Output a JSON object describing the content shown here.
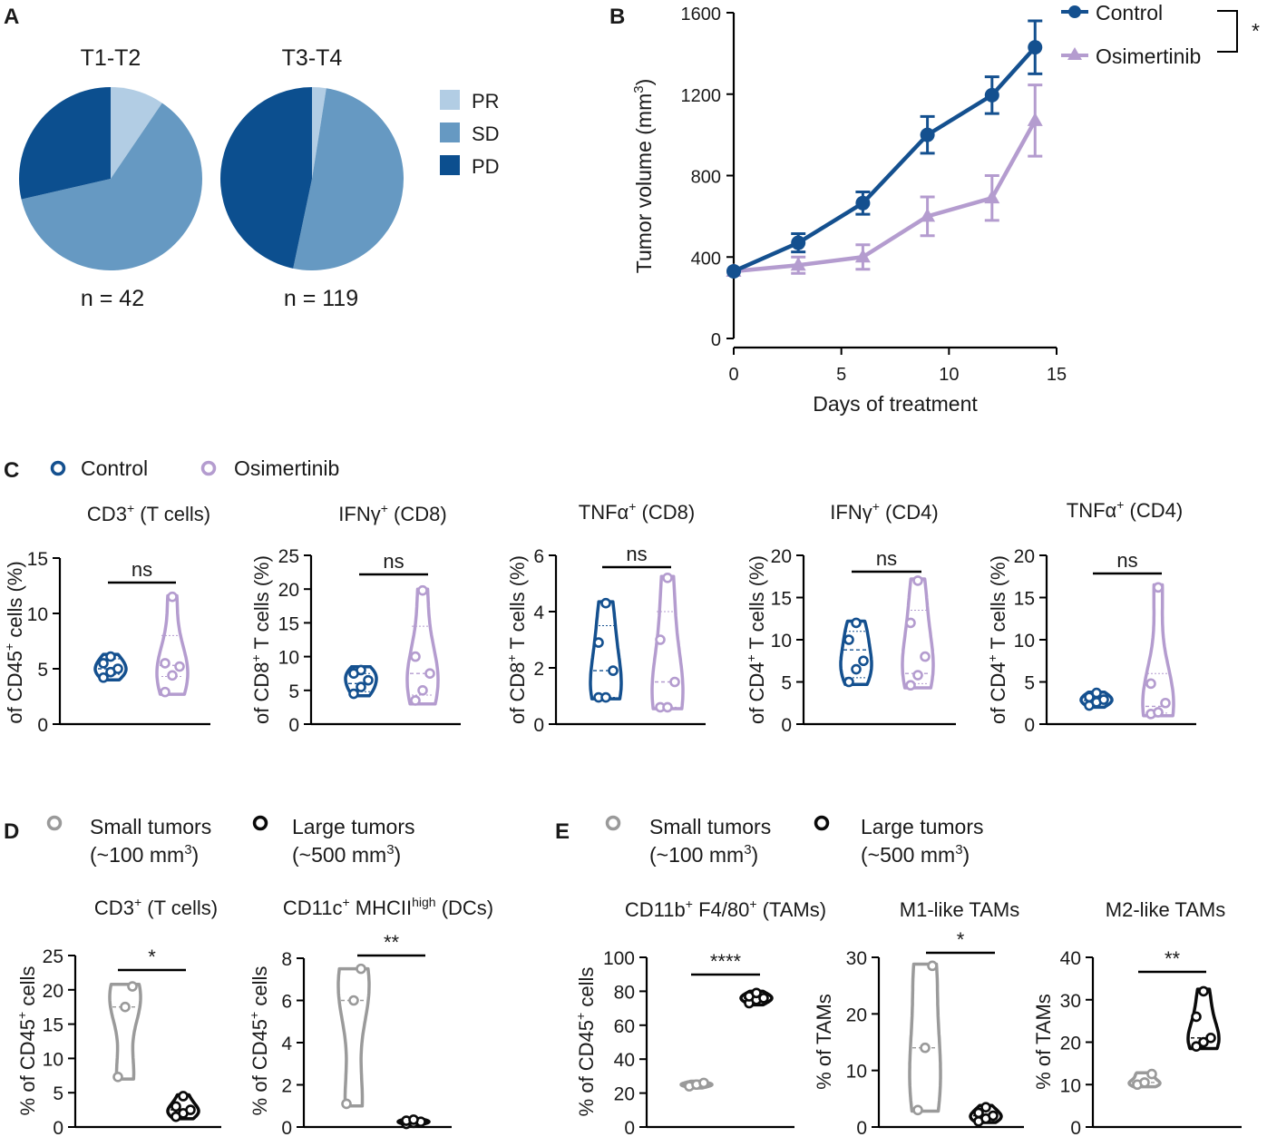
{
  "colors": {
    "control": "#14508f",
    "osimertinib": "#b49ccf",
    "small": "#9a9a9a",
    "large": "#0a0a0a",
    "pie_pr": "#b2cde4",
    "pie_sd": "#6699c2",
    "pie_pd": "#0c4f8f"
  },
  "panels": {
    "A": "A",
    "B": "B",
    "C": "C",
    "D": "D",
    "E": "E"
  },
  "chart_data": [
    {
      "id": "A1",
      "type": "pie",
      "title": "T1-T2",
      "n_label": "n = 42",
      "slices": [
        {
          "name": "PR",
          "value": 9.5
        },
        {
          "name": "SD",
          "value": 61.9
        },
        {
          "name": "PD",
          "value": 28.6
        }
      ]
    },
    {
      "id": "A2",
      "type": "pie",
      "title": "T3-T4",
      "n_label": "n = 119",
      "slices": [
        {
          "name": "PR",
          "value": 2.5
        },
        {
          "name": "SD",
          "value": 50.8
        },
        {
          "name": "PD",
          "value": 46.7
        }
      ]
    },
    {
      "id": "A_legend",
      "type": "legend",
      "entries": [
        "PR",
        "SD",
        "PD"
      ]
    },
    {
      "id": "B",
      "type": "line",
      "xlabel": "Days of treatment",
      "ylabel": "Tumor volume (mm",
      "ylabel_sup": "3",
      "ylabel_end": ")",
      "xlim": [
        0,
        15
      ],
      "ylim": [
        0,
        1600
      ],
      "xticks": [
        0,
        5,
        10,
        15
      ],
      "yticks": [
        0,
        400,
        800,
        1200,
        1600
      ],
      "significance": "*",
      "series": [
        {
          "name": "Control",
          "marker": "circle",
          "x": [
            0,
            3,
            6,
            9,
            12,
            14
          ],
          "y": [
            330,
            470,
            665,
            1000,
            1195,
            1430
          ],
          "err": [
            20,
            45,
            55,
            90,
            90,
            130
          ]
        },
        {
          "name": "Osimertinib",
          "marker": "triangle",
          "x": [
            0,
            3,
            6,
            9,
            12,
            14
          ],
          "y": [
            330,
            360,
            400,
            600,
            690,
            1070
          ],
          "err": [
            20,
            40,
            60,
            95,
            110,
            175
          ]
        }
      ]
    },
    {
      "id": "C_legend",
      "type": "legend",
      "entries": [
        "Control",
        "Osimertinib"
      ]
    },
    {
      "id": "C1",
      "type": "violin",
      "title_main": "CD3",
      "title_sup": "+",
      "title_rest": " (T cells)",
      "ylabel": "of CD45",
      "ylabel_sup": "+",
      "ylabel_end": " cells (%)",
      "ylim": [
        0,
        15
      ],
      "yticks": [
        0,
        5,
        10,
        15
      ],
      "sig": "ns",
      "groups": [
        {
          "name": "Control",
          "values": [
            4.2,
            4.7,
            5.0,
            5.5,
            6.1
          ],
          "min": 4.0,
          "max": 6.3,
          "median": 5.0,
          "q1": 4.5,
          "q3": 5.9
        },
        {
          "name": "Osimertinib",
          "values": [
            2.9,
            4.4,
            5.2,
            5.5,
            11.5
          ],
          "min": 2.7,
          "max": 11.6,
          "median": 5.3,
          "q1": 4.3,
          "q3": 8.0
        }
      ]
    },
    {
      "id": "C2",
      "type": "violin",
      "title_main": "IFNγ",
      "title_sup": "+",
      "title_rest": " (CD8)",
      "ylabel": "of CD8",
      "ylabel_sup": "+",
      "ylabel_end": " T cells (%)",
      "ylim": [
        0,
        25
      ],
      "yticks": [
        0,
        5,
        10,
        15,
        20,
        25
      ],
      "sig": "ns",
      "groups": [
        {
          "name": "Control",
          "values": [
            4.5,
            5.5,
            6.5,
            7.5,
            8.0
          ],
          "min": 4.2,
          "max": 8.5,
          "median": 6.0,
          "q1": 4.8,
          "q3": 7.5
        },
        {
          "name": "Osimertinib",
          "values": [
            3.5,
            5.0,
            7.5,
            10.0,
            19.8
          ],
          "min": 3.0,
          "max": 20.0,
          "median": 7.5,
          "q1": 4.3,
          "q3": 14.5
        }
      ]
    },
    {
      "id": "C3",
      "type": "violin",
      "title_main": "TNFα",
      "title_sup": "+",
      "title_rest": " (CD8)",
      "ylabel": "of CD8",
      "ylabel_sup": "+",
      "ylabel_end": " T cells (%)",
      "ylim": [
        0,
        6
      ],
      "yticks": [
        0,
        2,
        4,
        6
      ],
      "sig": "ns",
      "groups": [
        {
          "name": "Control",
          "values": [
            0.95,
            0.95,
            1.9,
            2.9,
            4.3
          ],
          "min": 0.9,
          "max": 4.35,
          "median": 1.9,
          "q1": 0.95,
          "q3": 3.5
        },
        {
          "name": "Osimertinib",
          "values": [
            0.6,
            0.6,
            1.5,
            3.0,
            5.2
          ],
          "min": 0.55,
          "max": 5.25,
          "median": 1.5,
          "q1": 0.6,
          "q3": 4.0
        }
      ]
    },
    {
      "id": "C4",
      "type": "violin",
      "title_main": "IFNγ",
      "title_sup": "+",
      "title_rest": " (CD4)",
      "ylabel": "of CD4",
      "ylabel_sup": "+",
      "ylabel_end": " T cells (%)",
      "ylim": [
        0,
        20
      ],
      "yticks": [
        0,
        5,
        10,
        15,
        20
      ],
      "sig": "ns",
      "groups": [
        {
          "name": "Control",
          "values": [
            5.0,
            6.5,
            7.5,
            10.0,
            12.0
          ],
          "min": 4.7,
          "max": 12.2,
          "median": 8.8,
          "q1": 5.5,
          "q3": 11.0
        },
        {
          "name": "Osimertinib",
          "values": [
            4.6,
            5.8,
            8.0,
            12.0,
            17.0
          ],
          "min": 4.3,
          "max": 17.2,
          "median": 6.0,
          "q1": 4.8,
          "q3": 13.5
        }
      ]
    },
    {
      "id": "C5",
      "type": "violin",
      "title_main": "TNFα",
      "title_sup": "+",
      "title_rest": " (CD4)",
      "ylabel": "of CD4",
      "ylabel_sup": "+",
      "ylabel_end": " T cells (%)",
      "ylim": [
        0,
        20
      ],
      "yticks": [
        0,
        5,
        10,
        15,
        20
      ],
      "sig": "ns",
      "groups": [
        {
          "name": "Control",
          "values": [
            2.2,
            2.6,
            2.9,
            3.2,
            3.7
          ],
          "min": 2.0,
          "max": 3.8,
          "median": 2.8,
          "q1": 2.4,
          "q3": 3.3
        },
        {
          "name": "Osimertinib",
          "values": [
            1.2,
            1.4,
            2.5,
            4.8,
            16.2
          ],
          "min": 1.0,
          "max": 16.5,
          "median": 2.1,
          "q1": 1.3,
          "q3": 6.0
        }
      ]
    },
    {
      "id": "DE_legend",
      "type": "legend",
      "entries": [
        {
          "name": "Small tumors",
          "size_a": "(~100 mm",
          "size_sup": "3",
          "size_b": ")"
        },
        {
          "name": "Large tumors",
          "size_a": "(~500 mm",
          "size_sup": "3",
          "size_b": ")"
        }
      ]
    },
    {
      "id": "D1",
      "type": "violin",
      "title_main": "CD3",
      "title_sup": "+",
      "title_rest": " (T cells)",
      "ylabel": "% of CD45",
      "ylabel_sup": "+",
      "ylabel_end": " cells",
      "ylim": [
        0,
        25
      ],
      "yticks": [
        0,
        5,
        10,
        15,
        20,
        25
      ],
      "sig": "*",
      "groups": [
        {
          "name": "Small tumors",
          "values": [
            7.3,
            17.5,
            20.5
          ],
          "min": 7.0,
          "max": 20.8,
          "median": 17.5
        },
        {
          "name": "Large tumors",
          "values": [
            1.5,
            2.0,
            2.5,
            3.0,
            4.5
          ],
          "min": 1.2,
          "max": 4.7,
          "median": 2.5
        }
      ]
    },
    {
      "id": "D2",
      "type": "violin",
      "title_main": "CD11c",
      "title_sup": "+",
      "title_rest": " MHCII",
      "title_sup2": "high",
      "title_end": " (DCs)",
      "ylabel": "% of CD45",
      "ylabel_sup": "+",
      "ylabel_end": " cells",
      "ylim": [
        0,
        8
      ],
      "yticks": [
        0,
        2,
        4,
        6,
        8
      ],
      "sig": "**",
      "groups": [
        {
          "name": "Small tumors",
          "values": [
            1.1,
            6.0,
            7.5
          ],
          "min": 1.0,
          "max": 7.5,
          "median": 6.0
        },
        {
          "name": "Large tumors",
          "values": [
            0.15,
            0.2,
            0.25,
            0.3,
            0.35
          ],
          "min": 0.1,
          "max": 0.4,
          "median": 0.25
        }
      ]
    },
    {
      "id": "E1",
      "type": "violin",
      "title_main": "CD11b",
      "title_sup": "+",
      "title_rest": " F4/80",
      "title_sup2": "+",
      "title_end": " (TAMs)",
      "ylabel": "% of CD45",
      "ylabel_sup": "+",
      "ylabel_end": " cells",
      "ylim": [
        0,
        100
      ],
      "yticks": [
        0,
        20,
        40,
        60,
        80,
        100
      ],
      "sig": "****",
      "groups": [
        {
          "name": "Small tumors",
          "values": [
            24,
            25,
            26
          ],
          "min": 23,
          "max": 27,
          "median": 25
        },
        {
          "name": "Large tumors",
          "values": [
            73,
            75,
            76,
            77,
            79
          ],
          "min": 72,
          "max": 80,
          "median": 76
        }
      ]
    },
    {
      "id": "E2",
      "type": "violin",
      "title_main": "M1-like TAMs",
      "ylabel": "% of TAMs",
      "ylim": [
        0,
        30
      ],
      "yticks": [
        0,
        10,
        20,
        30
      ],
      "sig": "*",
      "groups": [
        {
          "name": "Small tumors",
          "values": [
            3.0,
            14.0,
            28.5
          ],
          "min": 2.8,
          "max": 28.8,
          "median": 14.0
        },
        {
          "name": "Large tumors",
          "values": [
            1.0,
            1.5,
            2.0,
            2.5,
            3.5
          ],
          "min": 0.8,
          "max": 3.8,
          "median": 2.0
        }
      ]
    },
    {
      "id": "E3",
      "type": "violin",
      "title_main": "M2-like TAMs",
      "ylabel": "% of TAMs",
      "ylim": [
        0,
        40
      ],
      "yticks": [
        0,
        10,
        20,
        30,
        40
      ],
      "sig": "**",
      "groups": [
        {
          "name": "Small tumors",
          "values": [
            10.0,
            10.5,
            12.5
          ],
          "min": 9.5,
          "max": 12.8,
          "median": 10.5
        },
        {
          "name": "Large tumors",
          "values": [
            19.0,
            20.0,
            21.0,
            26.0,
            32.0
          ],
          "min": 18.5,
          "max": 32.5,
          "median": 21.0
        }
      ]
    }
  ]
}
